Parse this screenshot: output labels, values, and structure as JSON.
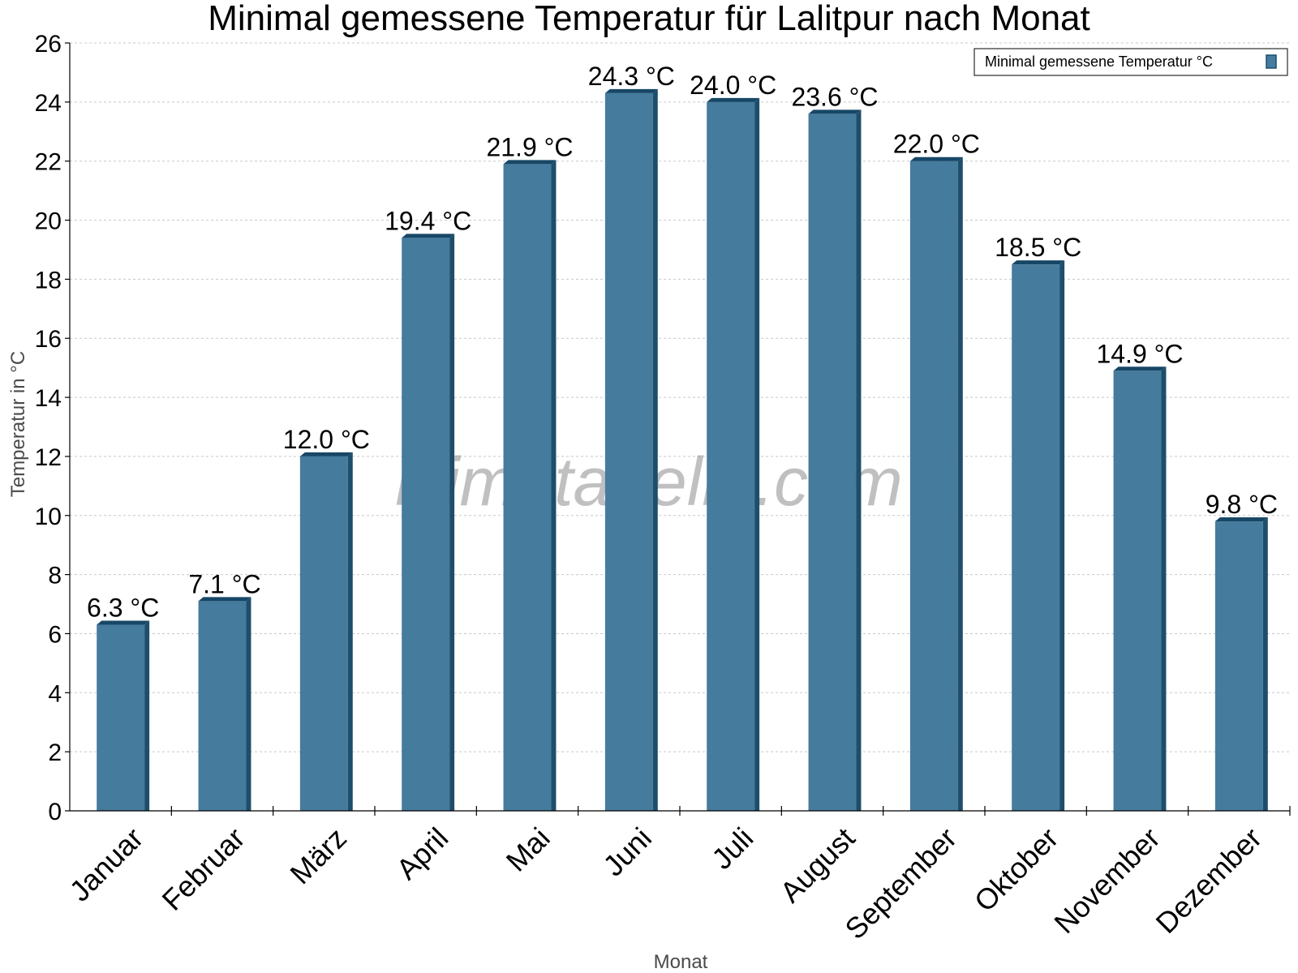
{
  "title": "Minimal gemessene Temperatur für Lalitpur nach Monat",
  "watermark": "klimatabelle.com",
  "colors": {
    "bar_face": "#457b9d",
    "bar_side": "#1d4e6b",
    "bar_top": "#174766"
  },
  "chart_data": {
    "type": "bar",
    "title": "Minimal gemessene Temperatur für Lalitpur nach Monat",
    "xlabel": "Monat",
    "ylabel": "Temperatur in °C",
    "ylim": [
      0,
      26
    ],
    "yticks": [
      0,
      2,
      4,
      6,
      8,
      10,
      12,
      14,
      16,
      18,
      20,
      22,
      24,
      26
    ],
    "grid": true,
    "legend_position": "top-right",
    "categories": [
      "Januar",
      "Februar",
      "März",
      "April",
      "Mai",
      "Juni",
      "Juli",
      "August",
      "September",
      "Oktober",
      "November",
      "Dezember"
    ],
    "series": [
      {
        "name": "Minimal gemessene Temperatur °C",
        "values": [
          6.3,
          7.1,
          12.0,
          19.4,
          21.9,
          24.3,
          24.0,
          23.6,
          22.0,
          18.5,
          14.9,
          9.8
        ],
        "labels": [
          "6.3 °C",
          "7.1 °C",
          "12.0 °C",
          "19.4 °C",
          "21.9 °C",
          "24.3 °C",
          "24.0 °C",
          "23.6 °C",
          "22.0 °C",
          "18.5 °C",
          "14.9 °C",
          "9.8 °C"
        ]
      }
    ]
  }
}
